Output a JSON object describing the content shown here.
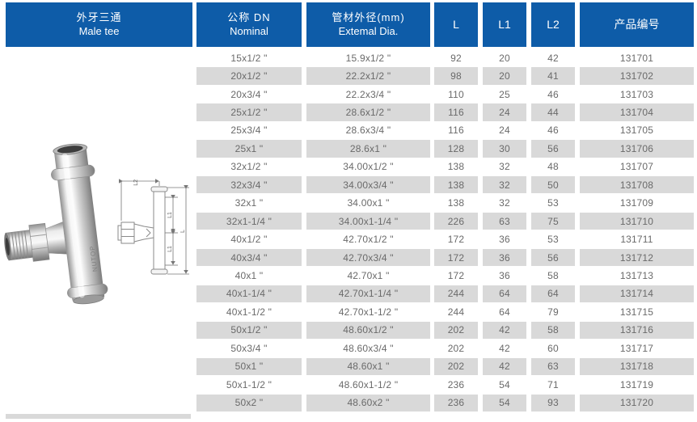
{
  "header": {
    "product": {
      "zh": "外牙三通",
      "en": "Male tee"
    },
    "nominal": {
      "zh": "公称 DN",
      "en": "Nominal"
    },
    "external": {
      "zh": "管材外径(mm)",
      "en": "Extemal Dia."
    },
    "l": "L",
    "l1": "L1",
    "l2": "L2",
    "code": "产品编号"
  },
  "product": {
    "brand_marking": "NUTOP",
    "diagram_labels": {
      "top": "L2",
      "inner_top": "L1",
      "inner_bottom": "L1",
      "outer": "L"
    }
  },
  "colors": {
    "header_bg": "#0e5ca8",
    "stripe": "#d9d9d9",
    "body_text": "#6a6a6a",
    "header_text": "#ffffff"
  },
  "rows": [
    {
      "nominal": "15x1/2 \"",
      "external": "15.9x1/2 \"",
      "l": "92",
      "l1": "20",
      "l2": "42",
      "code": "131701"
    },
    {
      "nominal": "20x1/2 \"",
      "external": "22.2x1/2 \"",
      "l": "98",
      "l1": "20",
      "l2": "41",
      "code": "131702"
    },
    {
      "nominal": "20x3/4 \"",
      "external": "22.2x3/4 \"",
      "l": "110",
      "l1": "25",
      "l2": "46",
      "code": "131703"
    },
    {
      "nominal": "25x1/2 \"",
      "external": "28.6x1/2 \"",
      "l": "116",
      "l1": "24",
      "l2": "44",
      "code": "131704"
    },
    {
      "nominal": "25x3/4 \"",
      "external": "28.6x3/4 \"",
      "l": "116",
      "l1": "24",
      "l2": "46",
      "code": "131705"
    },
    {
      "nominal": "25x1 \"",
      "external": "28.6x1 \"",
      "l": "128",
      "l1": "30",
      "l2": "56",
      "code": "131706"
    },
    {
      "nominal": "32x1/2 \"",
      "external": "34.00x1/2 \"",
      "l": "138",
      "l1": "32",
      "l2": "48",
      "code": "131707"
    },
    {
      "nominal": "32x3/4 \"",
      "external": "34.00x3/4 \"",
      "l": "138",
      "l1": "32",
      "l2": "50",
      "code": "131708"
    },
    {
      "nominal": "32x1 \"",
      "external": "34.00x1 \"",
      "l": "138",
      "l1": "32",
      "l2": "53",
      "code": "131709"
    },
    {
      "nominal": "32x1-1/4 \"",
      "external": "34.00x1-1/4 \"",
      "l": "226",
      "l1": "63",
      "l2": "75",
      "code": "131710"
    },
    {
      "nominal": "40x1/2 \"",
      "external": "42.70x1/2 \"",
      "l": "172",
      "l1": "36",
      "l2": "53",
      "code": "131711"
    },
    {
      "nominal": "40x3/4 \"",
      "external": "42.70x3/4 \"",
      "l": "172",
      "l1": "36",
      "l2": "56",
      "code": "131712"
    },
    {
      "nominal": "40x1 \"",
      "external": "42.70x1 \"",
      "l": "172",
      "l1": "36",
      "l2": "58",
      "code": "131713"
    },
    {
      "nominal": "40x1-1/4 \"",
      "external": "42.70x1-1/4 \"",
      "l": "244",
      "l1": "64",
      "l2": "64",
      "code": "131714"
    },
    {
      "nominal": "40x1-1/2 \"",
      "external": "42.70x1-1/2 \"",
      "l": "244",
      "l1": "64",
      "l2": "79",
      "code": "131715"
    },
    {
      "nominal": "50x1/2 \"",
      "external": "48.60x1/2 \"",
      "l": "202",
      "l1": "42",
      "l2": "58",
      "code": "131716"
    },
    {
      "nominal": "50x3/4 \"",
      "external": "48.60x3/4 \"",
      "l": "202",
      "l1": "42",
      "l2": "60",
      "code": "131717"
    },
    {
      "nominal": "50x1 \"",
      "external": "48.60x1 \"",
      "l": "202",
      "l1": "42",
      "l2": "63",
      "code": "131718"
    },
    {
      "nominal": "50x1-1/2 \"",
      "external": "48.60x1-1/2 \"",
      "l": "236",
      "l1": "54",
      "l2": "71",
      "code": "131719"
    },
    {
      "nominal": "50x2 \"",
      "external": "48.60x2 \"",
      "l": "236",
      "l1": "54",
      "l2": "93",
      "code": "131720"
    }
  ]
}
